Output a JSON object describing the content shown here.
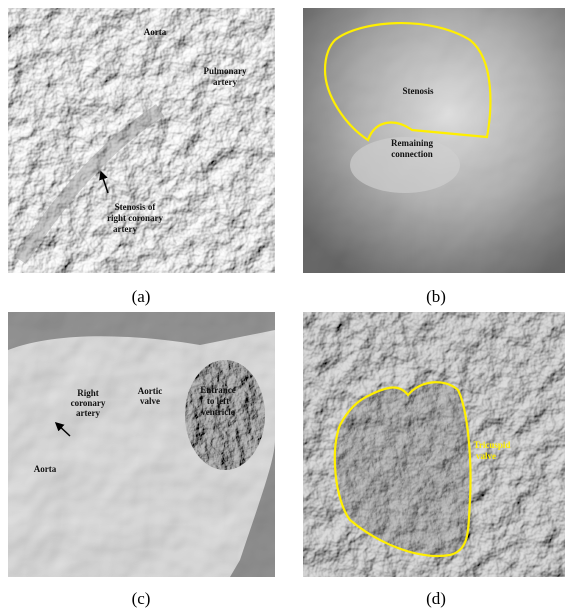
{
  "panels": [
    {
      "caption": "(a)",
      "annotations": [
        {
          "lines": [
            "Aorta"
          ]
        },
        {
          "lines": [
            "Pulmonary",
            "artery"
          ]
        },
        {
          "lines": [
            "Stenosis of",
            "right coronary",
            "artery"
          ]
        }
      ]
    },
    {
      "caption": "(b)",
      "annotations": [
        {
          "lines": [
            "Stenosis"
          ]
        },
        {
          "lines": [
            "Remaining",
            "connection"
          ]
        }
      ]
    },
    {
      "caption": "(c)",
      "annotations": [
        {
          "lines": [
            "Right",
            "coronary",
            "artery"
          ]
        },
        {
          "lines": [
            "Aortic",
            "valve"
          ]
        },
        {
          "lines": [
            "Entrance",
            "to left",
            "ventricle"
          ]
        },
        {
          "lines": [
            "Aorta"
          ]
        }
      ]
    },
    {
      "caption": "(d)",
      "annotations": [
        {
          "lines": [
            "Tricuspid",
            "valve"
          ]
        }
      ]
    }
  ]
}
